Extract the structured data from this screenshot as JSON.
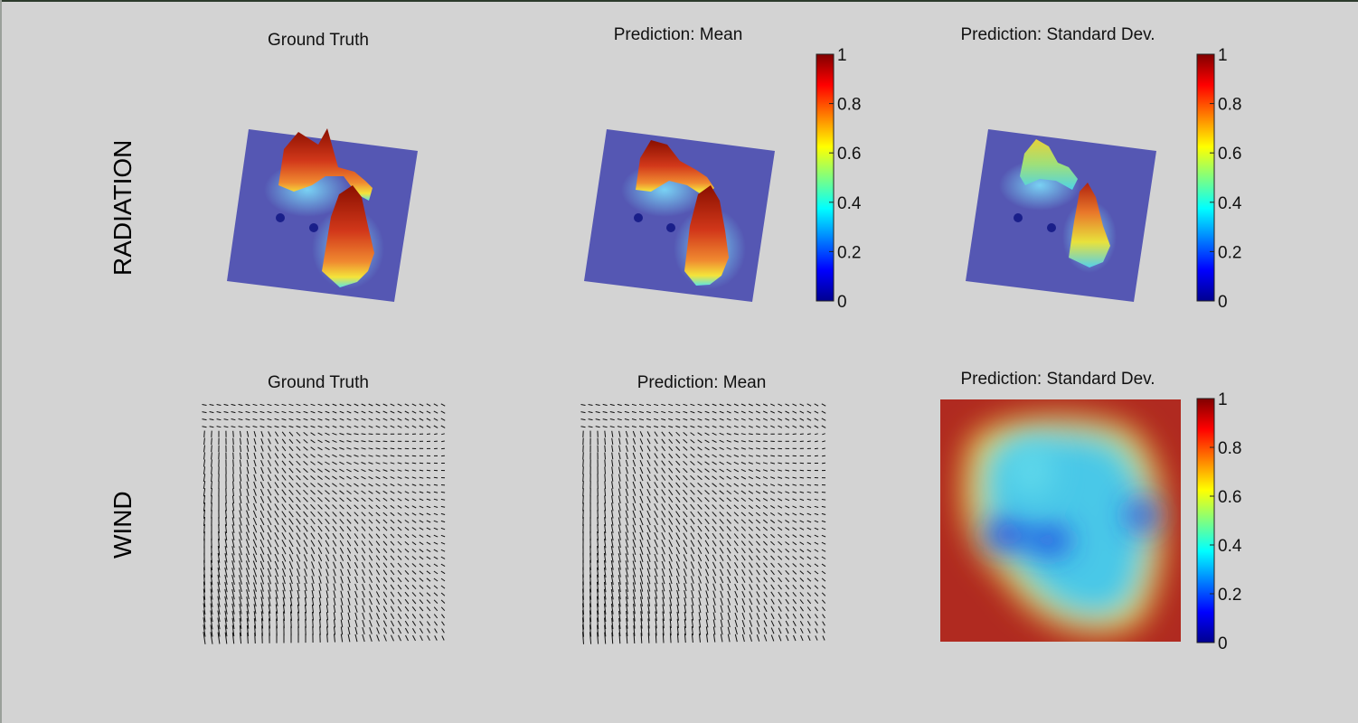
{
  "rows": {
    "radiation": "RADIATION",
    "wind": "WIND"
  },
  "panels": {
    "rad_gt": "Ground Truth",
    "rad_mean": "Prediction: Mean",
    "rad_std": "Prediction: Standard Dev.",
    "wind_gt": "Ground Truth",
    "wind_mean": "Prediction: Mean",
    "wind_std": "Prediction: Standard Dev."
  },
  "colorbar": {
    "colormap": "jet",
    "ticks": [
      "0",
      "0.2",
      "0.4",
      "0.6",
      "0.8",
      "1"
    ],
    "range": [
      0,
      1
    ]
  },
  "chart_data": [
    {
      "type": "surface",
      "title": "Ground Truth",
      "zlim": [
        0,
        1
      ]
    },
    {
      "type": "surface",
      "title": "Prediction: Mean",
      "zlim": [
        0,
        1
      ],
      "colorbar_ticks": [
        "0",
        "0.2",
        "0.4",
        "0.6",
        "0.8",
        "1"
      ]
    },
    {
      "type": "surface",
      "title": "Prediction: Standard Dev.",
      "zlim": [
        0,
        1
      ],
      "colorbar_ticks": [
        "0",
        "0.2",
        "0.4",
        "0.6",
        "0.8",
        "1"
      ]
    },
    {
      "type": "quiver",
      "title": "Ground Truth"
    },
    {
      "type": "quiver",
      "title": "Prediction: Mean"
    },
    {
      "type": "heatmap",
      "title": "Prediction: Standard Dev.",
      "clim": [
        0,
        1
      ],
      "colorbar_ticks": [
        "0",
        "0.2",
        "0.4",
        "0.6",
        "0.8",
        "1"
      ]
    }
  ]
}
